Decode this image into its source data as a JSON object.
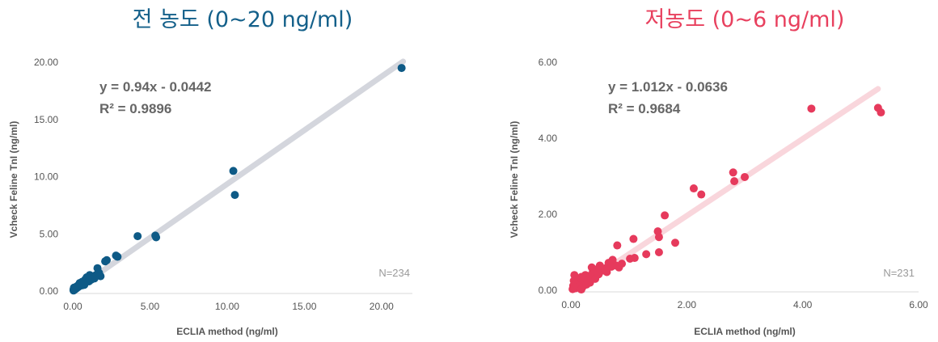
{
  "chart_data": [
    {
      "type": "scatter",
      "title": "전 농도 (0~20 ng/ml)",
      "xlabel": "ECLIA method (ng/ml)",
      "ylabel": "Vcheck Feline TnI (ng/ml)",
      "xlim": [
        0,
        22
      ],
      "ylim": [
        0,
        20
      ],
      "xticks": [
        "0.00",
        "5.00",
        "10.00",
        "15.00",
        "20.00"
      ],
      "yticks": [
        "0.00",
        "5.00",
        "10.00",
        "15.00",
        "20.00"
      ],
      "equation": "y = 0.94x - 0.0442",
      "r2": "R² = 0.9896",
      "n_label": "N=234",
      "trendline": {
        "slope": 0.94,
        "intercept": -0.0442,
        "x_from": 0.2,
        "x_to": 21.4
      },
      "colors": {
        "title": "#14608a",
        "points": "#0e5a86",
        "trend": "#d4d6dd"
      },
      "points": [
        [
          21.3,
          19.5
        ],
        [
          10.4,
          10.5
        ],
        [
          10.5,
          8.4
        ],
        [
          4.2,
          4.8
        ],
        [
          5.4,
          4.7
        ],
        [
          5.35,
          4.85
        ],
        [
          2.8,
          3.1
        ],
        [
          2.9,
          3.0
        ],
        [
          2.2,
          2.7
        ],
        [
          2.1,
          2.6
        ],
        [
          1.6,
          2.0
        ],
        [
          1.8,
          1.3
        ],
        [
          1.5,
          1.4
        ],
        [
          1.3,
          1.2
        ],
        [
          1.1,
          1.4
        ],
        [
          1.0,
          1.1
        ],
        [
          0.9,
          0.9
        ],
        [
          0.8,
          1.0
        ],
        [
          0.7,
          0.7
        ],
        [
          0.6,
          0.8
        ],
        [
          0.5,
          0.6
        ],
        [
          0.4,
          0.4
        ],
        [
          0.35,
          0.5
        ],
        [
          0.3,
          0.3
        ],
        [
          0.25,
          0.4
        ],
        [
          0.2,
          0.2
        ],
        [
          0.15,
          0.3
        ],
        [
          0.1,
          0.1
        ],
        [
          0.1,
          0.2
        ],
        [
          0.05,
          0.05
        ],
        [
          0.05,
          0.15
        ],
        [
          0.08,
          0.3
        ],
        [
          1.2,
          1.0
        ],
        [
          1.4,
          1.1
        ],
        [
          0.9,
          1.2
        ],
        [
          0.6,
          0.5
        ],
        [
          0.45,
          0.7
        ],
        [
          1.7,
          1.6
        ],
        [
          1.05,
          0.85
        ],
        [
          0.75,
          0.55
        ]
      ]
    },
    {
      "type": "scatter",
      "title": "저농도 (0~6 ng/ml)",
      "xlabel": "ECLIA method (ng/ml)",
      "ylabel": "Vcheck Feline TnI (ng/ml)",
      "xlim": [
        0,
        6
      ],
      "ylim": [
        0,
        6
      ],
      "xticks": [
        "0.00",
        "2.00",
        "4.00",
        "6.00"
      ],
      "yticks": [
        "0.00",
        "2.00",
        "4.00",
        "6.00"
      ],
      "equation": "y = 1.012x - 0.0636",
      "r2": "R² = 0.9684",
      "n_label": "N=231",
      "trendline": {
        "slope": 1.012,
        "intercept": -0.0636,
        "x_from": 0.3,
        "x_to": 5.3
      },
      "colors": {
        "title": "#e8405e",
        "points": "#e63a5c",
        "trend": "#f9d6dc"
      },
      "points": [
        [
          5.3,
          4.8
        ],
        [
          5.35,
          4.68
        ],
        [
          4.15,
          4.78
        ],
        [
          2.8,
          3.1
        ],
        [
          3.0,
          2.98
        ],
        [
          2.82,
          2.87
        ],
        [
          2.12,
          2.68
        ],
        [
          2.25,
          2.52
        ],
        [
          1.62,
          1.97
        ],
        [
          1.5,
          1.55
        ],
        [
          1.52,
          1.4
        ],
        [
          1.8,
          1.25
        ],
        [
          1.08,
          1.35
        ],
        [
          1.52,
          1.0
        ],
        [
          1.3,
          0.95
        ],
        [
          1.1,
          0.85
        ],
        [
          1.02,
          0.83
        ],
        [
          0.8,
          1.18
        ],
        [
          0.78,
          0.65
        ],
        [
          0.72,
          0.8
        ],
        [
          0.65,
          0.72
        ],
        [
          0.6,
          0.58
        ],
        [
          0.55,
          0.52
        ],
        [
          0.5,
          0.65
        ],
        [
          0.45,
          0.55
        ],
        [
          0.42,
          0.45
        ],
        [
          0.4,
          0.35
        ],
        [
          0.38,
          0.5
        ],
        [
          0.35,
          0.3
        ],
        [
          0.32,
          0.38
        ],
        [
          0.3,
          0.25
        ],
        [
          0.28,
          0.32
        ],
        [
          0.25,
          0.4
        ],
        [
          0.22,
          0.28
        ],
        [
          0.2,
          0.22
        ],
        [
          0.18,
          0.35
        ],
        [
          0.15,
          0.18
        ],
        [
          0.13,
          0.25
        ],
        [
          0.12,
          0.1
        ],
        [
          0.1,
          0.15
        ],
        [
          0.09,
          0.3
        ],
        [
          0.08,
          0.05
        ],
        [
          0.07,
          0.2
        ],
        [
          0.05,
          0.08
        ],
        [
          0.05,
          0.25
        ],
        [
          0.04,
          0.12
        ],
        [
          0.03,
          0.03
        ],
        [
          0.06,
          0.4
        ],
        [
          0.2,
          0.08
        ],
        [
          0.18,
          0.02
        ],
        [
          0.42,
          0.3
        ],
        [
          0.33,
          0.2
        ],
        [
          0.27,
          0.15
        ],
        [
          0.62,
          0.48
        ],
        [
          0.7,
          0.62
        ],
        [
          0.83,
          0.6
        ],
        [
          0.88,
          0.7
        ],
        [
          0.48,
          0.42
        ],
        [
          0.36,
          0.6
        ]
      ]
    }
  ]
}
